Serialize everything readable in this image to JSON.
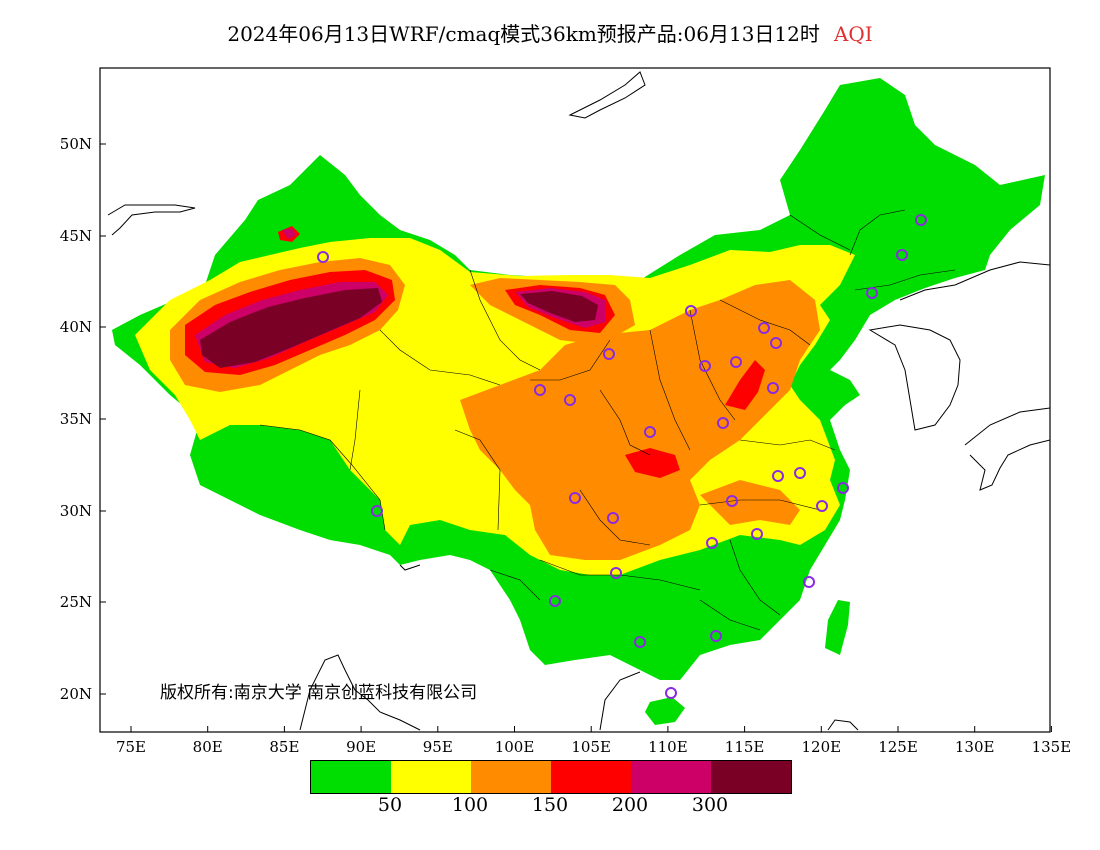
{
  "title": {
    "main": "2024年06月13日WRF/cmaq模式36km预报产品:06月13日12时",
    "product": "AQI"
  },
  "axes": {
    "lat_labels": [
      "20N",
      "25N",
      "30N",
      "35N",
      "40N",
      "45N",
      "50N"
    ],
    "lon_labels": [
      "75E",
      "80E",
      "85E",
      "90E",
      "95E",
      "100E",
      "105E",
      "110E",
      "115E",
      "120E",
      "125E",
      "130E",
      "135E"
    ]
  },
  "copyright": "版权所有:南京大学 南京创蓝科技有限公司",
  "legend": {
    "colors": [
      "#00dd00",
      "#ffff00",
      "#ff8c00",
      "#ff0000",
      "#cc0066",
      "#7a0026"
    ],
    "ticks": [
      "50",
      "100",
      "150",
      "200",
      "300"
    ]
  },
  "station_color": "#8a2be2"
}
